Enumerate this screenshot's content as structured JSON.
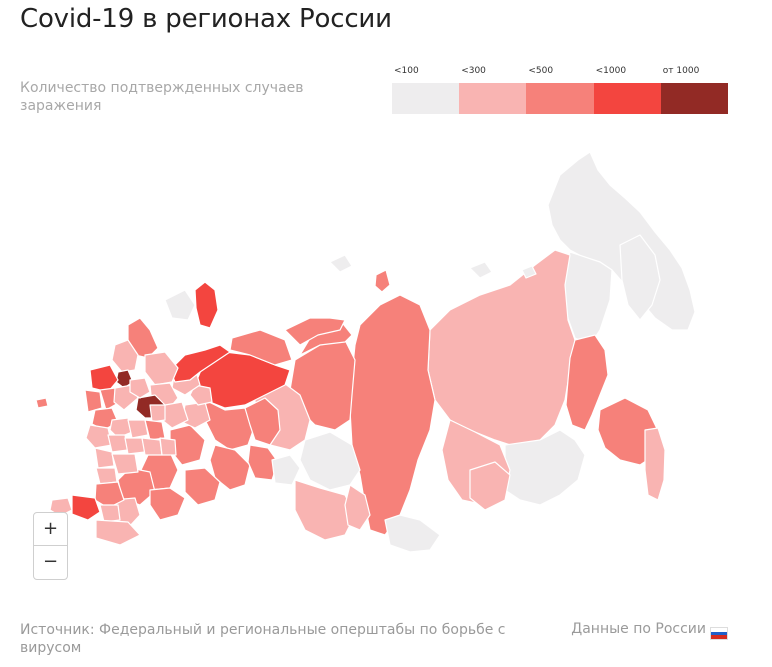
{
  "title": "Covid-19 в регионах России",
  "subtitle": "Количество подтвержденных случаев заражения",
  "legend": [
    {
      "label": "<100",
      "color": "#eeedee"
    },
    {
      "label": "<300",
      "color": "#f9b4b2"
    },
    {
      "label": "<500",
      "color": "#f6817a"
    },
    {
      "label": "<1000",
      "color": "#f3453f"
    },
    {
      "label": "от 1000",
      "color": "#922a25"
    }
  ],
  "zoom": {
    "in": "+",
    "out": "−"
  },
  "footer": {
    "source": "Источник: Федеральный и региональные оперштабы по борьбе с вирусом",
    "data_link": "Данные по России"
  }
}
